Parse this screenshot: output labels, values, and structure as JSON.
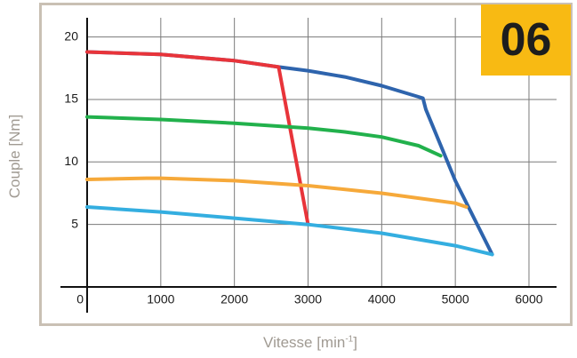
{
  "badge": "06",
  "chart_data": {
    "type": "line",
    "xlabel_main": "Vitesse [min",
    "xlabel_sup": "-1",
    "xlabel_end": "]",
    "ylabel": "Couple [Nm]",
    "xlim": [
      0,
      6000
    ],
    "ylim": [
      0,
      20
    ],
    "x_ticks": [
      0,
      1000,
      2000,
      3000,
      4000,
      5000,
      6000
    ],
    "y_ticks": [
      5,
      10,
      15,
      20
    ],
    "grid": true,
    "colors": [
      "#2e64ad",
      "#e8343a",
      "#22b14c",
      "#f6a93a",
      "#34aee0"
    ],
    "series": [
      {
        "color": "#2e64ad",
        "x": [
          0,
          1000,
          2000,
          2600,
          3000,
          3500,
          4000,
          4560,
          4600,
          5000,
          5500
        ],
        "y": [
          18.8,
          18.6,
          18.1,
          17.6,
          17.3,
          16.8,
          16.1,
          15.1,
          14.2,
          8.5,
          2.6
        ]
      },
      {
        "color": "#e8343a",
        "x": [
          0,
          1000,
          2000,
          2600,
          3000
        ],
        "y": [
          18.8,
          18.6,
          18.1,
          17.6,
          5.0
        ]
      },
      {
        "color": "#22b14c",
        "x": [
          0,
          1000,
          2000,
          3000,
          3500,
          4000,
          4500,
          4800
        ],
        "y": [
          13.6,
          13.4,
          13.1,
          12.7,
          12.4,
          12.0,
          11.3,
          10.5
        ]
      },
      {
        "color": "#f6a93a",
        "x": [
          0,
          800,
          1000,
          2000,
          3000,
          4000,
          5000,
          5150
        ],
        "y": [
          8.6,
          8.7,
          8.7,
          8.5,
          8.1,
          7.5,
          6.7,
          6.4
        ]
      },
      {
        "color": "#34aee0",
        "x": [
          0,
          1000,
          2000,
          3000,
          4000,
          5000,
          5500
        ],
        "y": [
          6.4,
          6.0,
          5.5,
          5.0,
          4.3,
          3.3,
          2.6
        ]
      }
    ]
  }
}
